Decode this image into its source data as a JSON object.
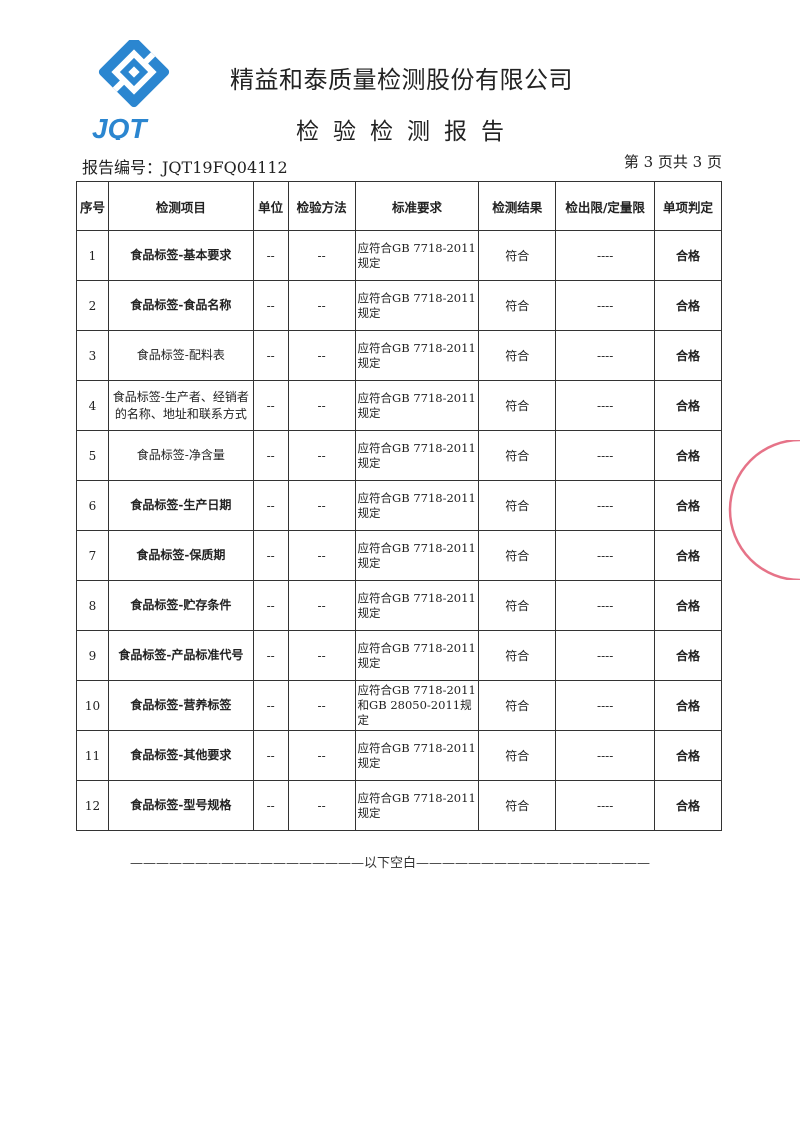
{
  "header": {
    "logo_text": "JQT",
    "company": "精益和泰质量检测股份有限公司",
    "title": "检验检测报告",
    "report_no": "报告编号：JQT19FQ04112",
    "page_info": "第 3 页共 3 页"
  },
  "colors": {
    "logo_blue": "#2b86d0",
    "stamp_red": "#e0506a"
  },
  "table": {
    "headers": [
      "序号",
      "检测项目",
      "单位",
      "检验方法",
      "标准要求",
      "检测结果",
      "检出限/定量限",
      "单项判定"
    ],
    "rows": [
      {
        "no": "1",
        "item": "食品标签-基本要求",
        "unit": "--",
        "method": "--",
        "std": "应符合GB 7718-2011规定",
        "result": "符合",
        "limit": "----",
        "verdict": "合格"
      },
      {
        "no": "2",
        "item": "食品标签-食品名称",
        "unit": "--",
        "method": "--",
        "std": "应符合GB 7718-2011规定",
        "result": "符合",
        "limit": "----",
        "verdict": "合格"
      },
      {
        "no": "3",
        "item": "食品标签-配料表",
        "unit": "--",
        "method": "--",
        "std": "应符合GB 7718-2011规定",
        "result": "符合",
        "limit": "----",
        "verdict": "合格"
      },
      {
        "no": "4",
        "item": "食品标签-生产者、经销者的名称、地址和联系方式",
        "unit": "--",
        "method": "--",
        "std": "应符合GB 7718-2011规定",
        "result": "符合",
        "limit": "----",
        "verdict": "合格"
      },
      {
        "no": "5",
        "item": "食品标签-净含量",
        "unit": "--",
        "method": "--",
        "std": "应符合GB 7718-2011规定",
        "result": "符合",
        "limit": "----",
        "verdict": "合格"
      },
      {
        "no": "6",
        "item": "食品标签-生产日期",
        "unit": "--",
        "method": "--",
        "std": "应符合GB 7718-2011规定",
        "result": "符合",
        "limit": "----",
        "verdict": "合格"
      },
      {
        "no": "7",
        "item": "食品标签-保质期",
        "unit": "--",
        "method": "--",
        "std": "应符合GB 7718-2011规定",
        "result": "符合",
        "limit": "----",
        "verdict": "合格"
      },
      {
        "no": "8",
        "item": "食品标签-贮存条件",
        "unit": "--",
        "method": "--",
        "std": "应符合GB 7718-2011规定",
        "result": "符合",
        "limit": "----",
        "verdict": "合格"
      },
      {
        "no": "9",
        "item": "食品标签-产品标准代号",
        "unit": "--",
        "method": "--",
        "std": "应符合GB 7718-2011规定",
        "result": "符合",
        "limit": "----",
        "verdict": "合格"
      },
      {
        "no": "10",
        "item": "食品标签-营养标签",
        "unit": "--",
        "method": "--",
        "std": "应符合GB 7718-2011和GB 28050-2011规定",
        "result": "符合",
        "limit": "----",
        "verdict": "合格"
      },
      {
        "no": "11",
        "item": "食品标签-其他要求",
        "unit": "--",
        "method": "--",
        "std": "应符合GB 7718-2011规定",
        "result": "符合",
        "limit": "----",
        "verdict": "合格"
      },
      {
        "no": "12",
        "item": "食品标签-型号规格",
        "unit": "--",
        "method": "--",
        "std": "应符合GB 7718-2011规定",
        "result": "符合",
        "limit": "----",
        "verdict": "合格"
      }
    ]
  },
  "footer": "——————————————————以下空白——————————————————"
}
